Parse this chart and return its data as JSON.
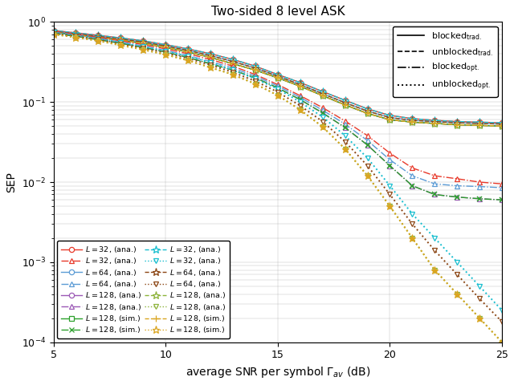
{
  "title": "Two-sided 8 level ASK",
  "xlabel": "average SNR per symbol $\\Gamma_{av}$ (dB)",
  "ylabel": "SEP",
  "snr_db": [
    5,
    6,
    7,
    8,
    9,
    10,
    11,
    12,
    13,
    14,
    15,
    16,
    17,
    18,
    19,
    20,
    21,
    22,
    23,
    24,
    25
  ],
  "xlim": [
    5,
    25
  ],
  "ylim": [
    0.0001,
    1.0
  ],
  "colors": {
    "red": "#e8392a",
    "blue": "#5b9bd5",
    "purple": "#9b59b6",
    "green": "#2ca02c",
    "cyan": "#17becf",
    "brown": "#8B4513",
    "olive": "#8DB33A",
    "gold": "#DAA520"
  },
  "line_style_legend": [
    {
      "label": "blocked$_{\\mathrm{trad.}}$",
      "ls": "-",
      "lw": 1.2
    },
    {
      "label": "unblocked$_{\\mathrm{trad.}}$",
      "ls": "--",
      "lw": 1.2
    },
    {
      "label": "blocked$_{\\mathrm{opt.}}$",
      "ls": "-.",
      "lw": 1.2
    },
    {
      "label": "unblocked$_{\\mathrm{opt.}}$",
      "ls": ":",
      "lw": 1.4
    }
  ],
  "blocked_trad": {
    "L32": [
      0.78,
      0.73,
      0.68,
      0.63,
      0.58,
      0.52,
      0.46,
      0.4,
      0.34,
      0.28,
      0.22,
      0.175,
      0.135,
      0.105,
      0.082,
      0.068,
      0.062,
      0.059,
      0.057,
      0.056,
      0.055
    ],
    "L64": [
      0.76,
      0.71,
      0.66,
      0.61,
      0.56,
      0.5,
      0.44,
      0.38,
      0.32,
      0.265,
      0.21,
      0.165,
      0.127,
      0.098,
      0.077,
      0.064,
      0.059,
      0.057,
      0.055,
      0.054,
      0.053
    ],
    "L128": [
      0.74,
      0.69,
      0.64,
      0.59,
      0.54,
      0.48,
      0.42,
      0.36,
      0.3,
      0.25,
      0.2,
      0.157,
      0.12,
      0.092,
      0.072,
      0.06,
      0.056,
      0.054,
      0.052,
      0.051,
      0.05
    ]
  },
  "unblocked_trad": {
    "L32": [
      0.78,
      0.73,
      0.68,
      0.63,
      0.58,
      0.52,
      0.46,
      0.4,
      0.34,
      0.28,
      0.22,
      0.175,
      0.135,
      0.105,
      0.082,
      0.068,
      0.062,
      0.059,
      0.057,
      0.056,
      0.055
    ],
    "L64": [
      0.76,
      0.71,
      0.66,
      0.61,
      0.56,
      0.5,
      0.44,
      0.38,
      0.32,
      0.265,
      0.21,
      0.165,
      0.127,
      0.098,
      0.077,
      0.064,
      0.059,
      0.057,
      0.055,
      0.054,
      0.053
    ],
    "L128": [
      0.74,
      0.69,
      0.64,
      0.59,
      0.54,
      0.48,
      0.42,
      0.36,
      0.3,
      0.25,
      0.2,
      0.157,
      0.12,
      0.092,
      0.072,
      0.06,
      0.056,
      0.054,
      0.052,
      0.051,
      0.05
    ]
  },
  "blocked_opt": {
    "L32": [
      0.76,
      0.7,
      0.64,
      0.58,
      0.52,
      0.46,
      0.4,
      0.34,
      0.28,
      0.22,
      0.165,
      0.12,
      0.085,
      0.058,
      0.038,
      0.023,
      0.015,
      0.012,
      0.011,
      0.01,
      0.0095
    ],
    "L64": [
      0.74,
      0.68,
      0.62,
      0.56,
      0.5,
      0.44,
      0.38,
      0.32,
      0.265,
      0.21,
      0.158,
      0.114,
      0.079,
      0.053,
      0.033,
      0.019,
      0.012,
      0.0095,
      0.009,
      0.0088,
      0.0085
    ],
    "L128": [
      0.72,
      0.66,
      0.6,
      0.54,
      0.48,
      0.42,
      0.36,
      0.3,
      0.25,
      0.2,
      0.15,
      0.107,
      0.073,
      0.048,
      0.029,
      0.016,
      0.009,
      0.007,
      0.0065,
      0.0062,
      0.006
    ]
  },
  "unblocked_opt": {
    "L32": [
      0.74,
      0.68,
      0.62,
      0.55,
      0.49,
      0.43,
      0.37,
      0.31,
      0.25,
      0.195,
      0.145,
      0.1,
      0.065,
      0.038,
      0.02,
      0.009,
      0.004,
      0.002,
      0.001,
      0.0005,
      0.00025
    ],
    "L64": [
      0.72,
      0.66,
      0.6,
      0.53,
      0.47,
      0.41,
      0.35,
      0.29,
      0.235,
      0.182,
      0.133,
      0.09,
      0.057,
      0.032,
      0.016,
      0.007,
      0.003,
      0.0014,
      0.0007,
      0.00035,
      0.00018
    ],
    "L128": [
      0.7,
      0.64,
      0.58,
      0.51,
      0.45,
      0.39,
      0.33,
      0.27,
      0.22,
      0.168,
      0.121,
      0.08,
      0.049,
      0.026,
      0.012,
      0.005,
      0.002,
      0.0008,
      0.0004,
      0.0002,
      0.0001
    ]
  }
}
